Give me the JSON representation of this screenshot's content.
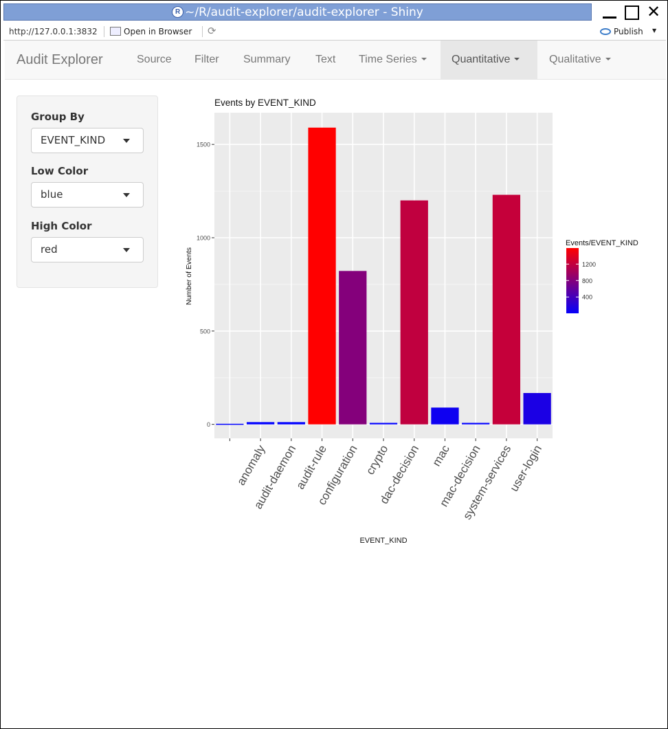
{
  "window": {
    "title": "~/R/audit-explorer/audit-explorer - Shiny",
    "app_icon": "R-logo"
  },
  "addressbar": {
    "url": "http://127.0.0.1:3832",
    "open_in_browser": "Open in Browser",
    "publish": "Publish"
  },
  "navbar": {
    "brand": "Audit Explorer",
    "tabs": [
      {
        "label": "Source",
        "dropdown": false
      },
      {
        "label": "Filter",
        "dropdown": false
      },
      {
        "label": "Summary",
        "dropdown": false
      },
      {
        "label": "Text",
        "dropdown": false
      },
      {
        "label": "Time Series",
        "dropdown": true
      },
      {
        "label": "Quantitative",
        "dropdown": true,
        "active": true
      },
      {
        "label": "Qualitative",
        "dropdown": true
      }
    ]
  },
  "sidebar": {
    "group_by": {
      "label": "Group By",
      "value": "EVENT_KIND"
    },
    "low_color": {
      "label": "Low Color",
      "value": "blue"
    },
    "high_color": {
      "label": "High Color",
      "value": "red"
    }
  },
  "chart_data": {
    "type": "bar",
    "title": "Events by EVENT_KIND",
    "xlabel": "EVENT_KIND",
    "ylabel": "Number of Events",
    "categories": [
      "",
      "anomaly",
      "audit-daemon",
      "audit-rule",
      "configuration",
      "crypto",
      "dac-decision",
      "mac",
      "mac-decision",
      "system-services",
      "user-login"
    ],
    "values": [
      3,
      12,
      12,
      1590,
      822,
      8,
      1200,
      90,
      8,
      1230,
      168
    ],
    "ylim": [
      -75,
      1670
    ],
    "yticks": [
      0,
      500,
      1000,
      1500
    ],
    "grid": true,
    "fill_scale": {
      "low": "#0000ff",
      "high": "#ff0000",
      "min": 3,
      "max": 1590
    },
    "legend": {
      "title": "Events/EVENT_KIND",
      "position": "right",
      "ticks": [
        400,
        800,
        1200
      ]
    }
  }
}
